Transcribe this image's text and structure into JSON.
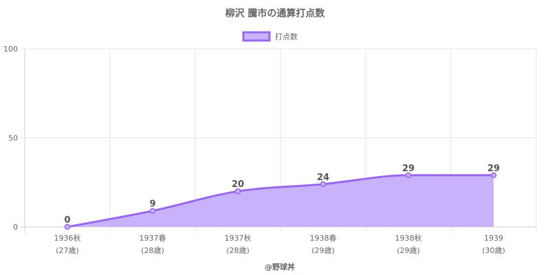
{
  "chart_data": {
    "type": "area",
    "title": "柳沢 騰市の通算打点数",
    "categories": [
      {
        "label": "1936秋",
        "age": "(27歳)"
      },
      {
        "label": "1937春",
        "age": "(28歳)"
      },
      {
        "label": "1937秋",
        "age": "(28歳)"
      },
      {
        "label": "1938春",
        "age": "(29歳)"
      },
      {
        "label": "1938秋",
        "age": "(29歳)"
      },
      {
        "label": "1939",
        "age": "(30歳)"
      }
    ],
    "series": [
      {
        "name": "打点数",
        "values": [
          0,
          9,
          20,
          24,
          29,
          29
        ]
      }
    ],
    "ylim": [
      0,
      100
    ],
    "yticks": [
      0,
      50,
      100
    ],
    "grid": true,
    "legend_position": "top"
  },
  "colors": {
    "line": "#9966ee",
    "fill": "#c8b2fb",
    "grid": "#e6e6e6",
    "axis": "#cccccc"
  },
  "credit": "@野球丼"
}
